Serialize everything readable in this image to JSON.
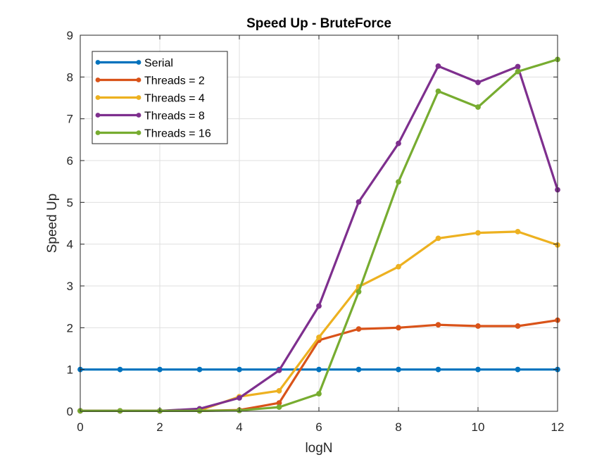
{
  "chart_data": {
    "type": "line",
    "title": "Speed Up - BruteForce",
    "xlabel": "logN",
    "ylabel": "Speed Up",
    "xlim": [
      0,
      12
    ],
    "ylim": [
      0,
      9
    ],
    "xticks": [
      0,
      2,
      4,
      6,
      8,
      10,
      12
    ],
    "yticks": [
      0,
      1,
      2,
      3,
      4,
      5,
      6,
      7,
      8,
      9
    ],
    "grid": true,
    "legend_position": "top-left",
    "x": [
      0,
      1,
      2,
      3,
      4,
      5,
      6,
      7,
      8,
      9,
      10,
      11,
      12
    ],
    "series": [
      {
        "name": "Serial",
        "color": "#0072BD",
        "values": [
          1,
          1,
          1,
          1,
          1,
          1,
          1,
          1,
          1,
          1,
          1,
          1,
          1
        ]
      },
      {
        "name": "Threads = 2",
        "color": "#D95319",
        "values": [
          0.01,
          0.01,
          0.01,
          0.01,
          0.03,
          0.2,
          1.7,
          1.97,
          2.0,
          2.07,
          2.04,
          2.04,
          2.18
        ]
      },
      {
        "name": "Threads = 4",
        "color": "#EDB120",
        "values": [
          0.01,
          0.01,
          0.01,
          0.02,
          0.35,
          0.49,
          1.77,
          2.98,
          3.46,
          4.14,
          4.27,
          4.3,
          3.98
        ]
      },
      {
        "name": "Threads = 8",
        "color": "#7E2F8E",
        "values": [
          0.01,
          0.01,
          0.01,
          0.06,
          0.32,
          0.98,
          2.52,
          5.01,
          6.41,
          8.26,
          7.87,
          8.25,
          5.3
        ]
      },
      {
        "name": "Threads = 16",
        "color": "#77AC30",
        "values": [
          0.01,
          0.01,
          0.01,
          0.01,
          0.02,
          0.1,
          0.42,
          2.86,
          5.49,
          7.66,
          7.28,
          8.13,
          8.42
        ]
      }
    ]
  }
}
